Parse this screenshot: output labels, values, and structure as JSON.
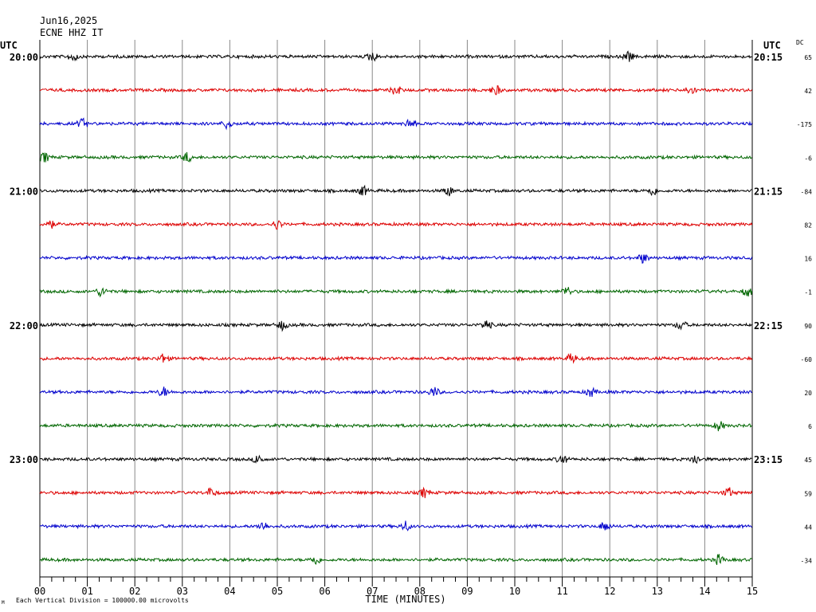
{
  "header": {
    "date": "Jun16,2025",
    "station": "ECNE HHZ IT",
    "utc_left": "UTC",
    "utc_right": "UTC",
    "dc_label": "DC"
  },
  "footer": {
    "note": "Each Vertical Division = 100000.00 microvolts",
    "mark": "M"
  },
  "colors": {
    "trace_cycle": [
      "#000000",
      "#dd0000",
      "#0000cc",
      "#006600"
    ],
    "grid": "#888888",
    "frame": "#000000"
  },
  "chart_data": {
    "type": "line",
    "title": "",
    "xlabel": "TIME (MINUTES)",
    "xlim": [
      0,
      15
    ],
    "x_ticks": [
      "00",
      "01",
      "02",
      "03",
      "04",
      "05",
      "06",
      "07",
      "08",
      "09",
      "10",
      "11",
      "12",
      "13",
      "14",
      "15"
    ],
    "minor_ticks_per_minute": 4,
    "grid": true,
    "rows": [
      {
        "left_label": "20:00",
        "right_label": "20:15",
        "dc": "65",
        "events": [
          0.7,
          7.0,
          12.4
        ]
      },
      {
        "left_label": "",
        "right_label": "",
        "dc": "42",
        "events": [
          7.5,
          9.6,
          13.7
        ]
      },
      {
        "left_label": "",
        "right_label": "",
        "dc": "-175",
        "events": [
          0.9,
          3.95,
          7.8
        ]
      },
      {
        "left_label": "",
        "right_label": "",
        "dc": "-6",
        "events": [
          0.1,
          3.1
        ]
      },
      {
        "left_label": "21:00",
        "right_label": "21:15",
        "dc": "-84",
        "events": [
          6.8,
          8.6,
          12.9
        ]
      },
      {
        "left_label": "",
        "right_label": "",
        "dc": "82",
        "events": [
          0.2,
          5.0
        ]
      },
      {
        "left_label": "",
        "right_label": "",
        "dc": "16",
        "events": [
          12.7
        ]
      },
      {
        "left_label": "",
        "right_label": "",
        "dc": "-1",
        "events": [
          1.3,
          11.1,
          14.9
        ]
      },
      {
        "left_label": "22:00",
        "right_label": "22:15",
        "dc": "90",
        "events": [
          5.1,
          9.4,
          13.5
        ]
      },
      {
        "left_label": "",
        "right_label": "",
        "dc": "-60",
        "events": [
          2.6,
          11.2
        ]
      },
      {
        "left_label": "",
        "right_label": "",
        "dc": "20",
        "events": [
          2.6,
          8.3,
          11.6
        ]
      },
      {
        "left_label": "",
        "right_label": "",
        "dc": "6",
        "events": [
          14.3
        ]
      },
      {
        "left_label": "23:00",
        "right_label": "23:15",
        "dc": "45",
        "events": [
          4.6,
          11.0,
          13.8
        ]
      },
      {
        "left_label": "",
        "right_label": "",
        "dc": "59",
        "events": [
          3.6,
          8.1,
          14.5
        ]
      },
      {
        "left_label": "",
        "right_label": "",
        "dc": "44",
        "events": [
          4.7,
          7.7,
          11.9
        ]
      },
      {
        "left_label": "",
        "right_label": "",
        "dc": "-34",
        "events": [
          5.8,
          14.3
        ]
      }
    ]
  }
}
